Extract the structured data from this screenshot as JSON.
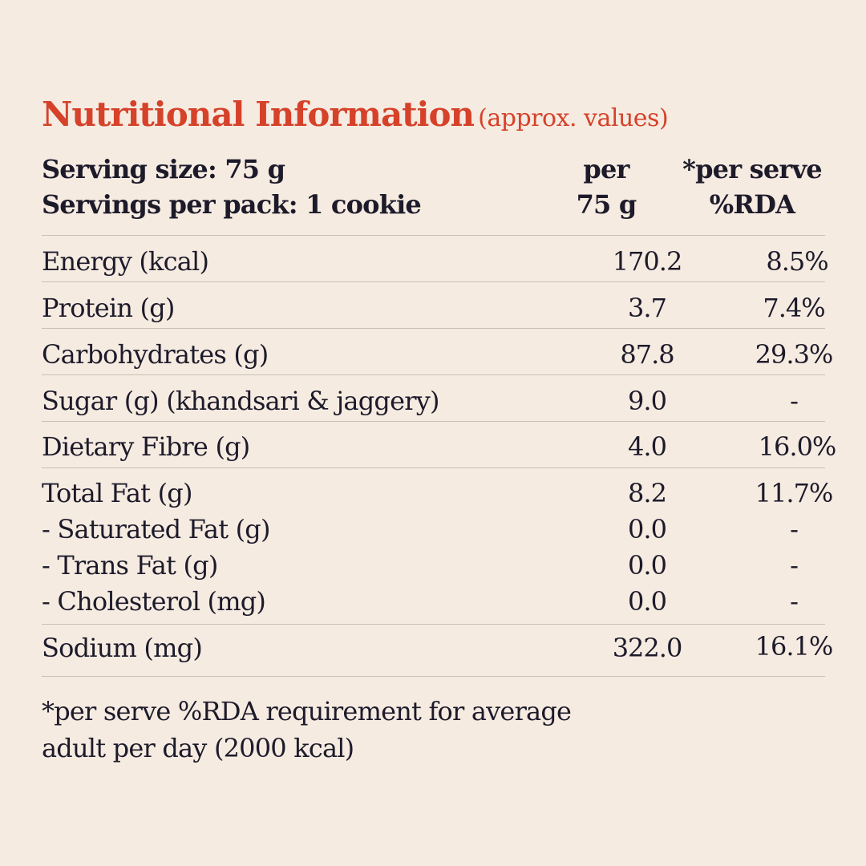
{
  "header": {
    "title": "Nutritional Information",
    "subtitle": "(approx. values)",
    "serving_size": "Serving size: 75 g",
    "servings_per_pack": "Servings per pack: 1 cookie",
    "col1_line1": "per",
    "col1_line2": "75 g",
    "col2_line1": "*per serve",
    "col2_line2": "%RDA"
  },
  "rows": [
    {
      "label": "Energy (kcal)",
      "per75": "170.2",
      "rda": "8.5%"
    },
    {
      "label": "Protein (g)",
      "per75": "3.7",
      "rda": "7.4%"
    },
    {
      "label": "Carbohydrates (g)",
      "per75": "87.8",
      "rda": "29.3%"
    },
    {
      "label": "Sugar (g) (khandsari & jaggery)",
      "per75": "9.0",
      "rda": "-"
    },
    {
      "label": "Dietary Fibre (g)",
      "per75": "4.0",
      "rda": "16.0%"
    }
  ],
  "fat_group": [
    {
      "label": "Total Fat (g)",
      "per75": "8.2",
      "rda": "11.7%"
    },
    {
      "label": "- Saturated Fat (g)",
      "per75": "0.0",
      "rda": "-"
    },
    {
      "label": "- Trans Fat (g)",
      "per75": "0.0",
      "rda": "-"
    },
    {
      "label": "- Cholesterol (mg)",
      "per75": "0.0",
      "rda": "-"
    }
  ],
  "sodium": {
    "label": "Sodium (mg)",
    "per75": "322.0",
    "rda": "16.1%"
  },
  "footnote_line1": "*per serve %RDA requirement for average",
  "footnote_line2": "adult per day (2000 kcal)",
  "colors": {
    "background": "#f5ebe1",
    "title": "#d6412a",
    "text": "#1d1a2a",
    "rule": "#c9bfb5"
  }
}
